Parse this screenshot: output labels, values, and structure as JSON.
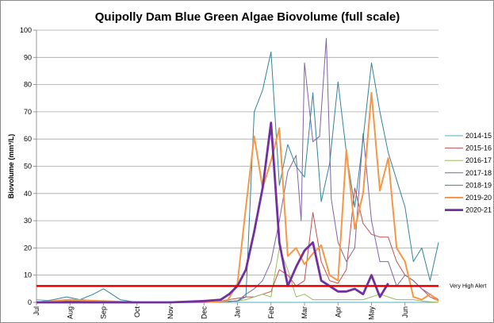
{
  "chart_data": {
    "type": "line",
    "title": "Quipolly Dam Blue Green Algae Biovolume (full scale)",
    "xlabel": "",
    "ylabel": "Biovolume (mm³/L)",
    "ylim": [
      0,
      100
    ],
    "yticks": [
      0,
      10,
      20,
      30,
      40,
      50,
      60,
      70,
      80,
      90,
      100
    ],
    "xlim": [
      0,
      12
    ],
    "x_months": [
      "Jul",
      "Aug",
      "Sep",
      "Oct",
      "Nov",
      "Dec",
      "Jan",
      "Feb",
      "Mar",
      "Apr",
      "May",
      "Jun"
    ],
    "grid": "horizontal",
    "legend_position": "right",
    "alert_line": {
      "value": 6,
      "label": "Very High Alert",
      "color": "#e00000"
    },
    "series": [
      {
        "name": "2014-15",
        "color": "#4bacc6",
        "width": 1,
        "x": [
          0.0,
          0.5,
          1.0,
          1.4,
          1.7,
          2.0,
          3.0,
          4.0,
          5.0,
          6.0,
          6.25,
          6.5,
          6.75,
          7.0,
          7.25,
          7.5,
          7.75,
          8.0,
          8.25,
          8.5,
          8.75,
          9.0,
          9.25,
          9.5,
          9.75,
          10.0,
          10.25,
          10.5,
          10.75,
          11.0,
          11.25,
          11.5,
          11.75,
          12.0
        ],
        "y": [
          1.0,
          0.5,
          1.0,
          1.0,
          0.5,
          0.2,
          0,
          0,
          0,
          0,
          0,
          0,
          0,
          0,
          0,
          0,
          0,
          0,
          0,
          0,
          0,
          0,
          0,
          0,
          0,
          0,
          0,
          0,
          0,
          0,
          0,
          0,
          0,
          0
        ]
      },
      {
        "name": "2015-16",
        "color": "#c0504d",
        "width": 1,
        "x": [
          0.0,
          1.0,
          2.0,
          3.0,
          4.0,
          5.0,
          5.5,
          6.0,
          6.25,
          6.5,
          6.75,
          7.0,
          7.25,
          7.5,
          7.75,
          8.0,
          8.25,
          8.5,
          8.75,
          9.0,
          9.25,
          9.5,
          9.75,
          10.0,
          10.25,
          10.5,
          10.75,
          11.0,
          11.25,
          11.5,
          11.75,
          12.0
        ],
        "y": [
          0,
          0.5,
          0.2,
          0,
          0,
          0,
          0.5,
          1.5,
          2.0,
          2.0,
          3.0,
          4.0,
          12.0,
          10.0,
          6.0,
          8.0,
          33.0,
          15.0,
          8.0,
          7.0,
          12.0,
          42.0,
          29.0,
          25.0,
          24.0,
          24.0,
          15.0,
          10.0,
          8.0,
          5.0,
          2.0,
          0.5
        ]
      },
      {
        "name": "2016-17",
        "color": "#9bbb59",
        "width": 1,
        "x": [
          0.0,
          1.0,
          2.0,
          3.0,
          4.0,
          5.0,
          6.0,
          6.25,
          6.5,
          6.75,
          7.0,
          7.25,
          7.5,
          7.75,
          8.0,
          8.25,
          8.5,
          8.75,
          9.0,
          9.25,
          9.5,
          9.75,
          10.0,
          10.25,
          10.5,
          10.75,
          11.0,
          11.25,
          11.5,
          11.75,
          12.0
        ],
        "y": [
          0,
          0,
          0,
          0,
          0,
          0,
          0.5,
          1.0,
          2.0,
          3.0,
          2.0,
          20.0,
          12.0,
          2.0,
          3.0,
          1.0,
          1.0,
          1.0,
          1.0,
          1.0,
          1.0,
          1.0,
          2.0,
          3.0,
          2.0,
          1.0,
          1.0,
          1.0,
          0.5,
          0.2,
          0
        ]
      },
      {
        "name": "2017-18",
        "color": "#8064a2",
        "width": 1,
        "x": [
          0.0,
          1.0,
          2.0,
          3.0,
          4.0,
          5.0,
          6.0,
          6.25,
          6.5,
          6.75,
          7.0,
          7.25,
          7.5,
          7.75,
          7.9,
          8.0,
          8.25,
          8.45,
          8.65,
          8.8,
          9.0,
          9.25,
          9.5,
          9.75,
          10.0,
          10.25,
          10.5,
          10.75,
          11.0,
          11.25,
          11.5,
          11.75,
          12.0
        ],
        "y": [
          0,
          0,
          0,
          0,
          0,
          0,
          0.5,
          3.0,
          5.0,
          8.0,
          15.0,
          30.0,
          48.0,
          54.0,
          30.0,
          88.0,
          59.0,
          61.0,
          97.0,
          38.0,
          22.0,
          15.0,
          20.0,
          62.0,
          30.0,
          15.0,
          15.0,
          6.0,
          10.0,
          8.0,
          5.0,
          3.0,
          1.0
        ]
      },
      {
        "name": "2018-19",
        "color": "#31849b",
        "width": 1,
        "x": [
          0.0,
          0.5,
          0.9,
          1.3,
          1.7,
          2.0,
          2.5,
          3.0,
          4.0,
          5.0,
          6.0,
          6.25,
          6.5,
          6.75,
          7.0,
          7.25,
          7.5,
          7.75,
          8.0,
          8.25,
          8.5,
          8.75,
          9.0,
          9.25,
          9.5,
          9.75,
          10.0,
          10.25,
          10.5,
          10.75,
          11.0,
          11.25,
          11.5,
          11.75,
          12.0
        ],
        "y": [
          0,
          1.0,
          2.0,
          1.0,
          3.0,
          5.0,
          1.0,
          0,
          0,
          0,
          0.5,
          2.0,
          70.0,
          78.0,
          92.0,
          43.0,
          58.0,
          50.0,
          46.0,
          77.0,
          37.0,
          51.0,
          81.0,
          55.0,
          35.0,
          60.0,
          88.0,
          70.0,
          55.0,
          45.0,
          35.0,
          15.0,
          20.0,
          8.0,
          22.0
        ]
      },
      {
        "name": "2019-20",
        "color": "#f79646",
        "width": 2,
        "x": [
          0.0,
          0.5,
          1.0,
          2.0,
          3.0,
          4.0,
          5.0,
          5.7,
          6.0,
          6.25,
          6.5,
          6.75,
          7.0,
          7.25,
          7.5,
          7.75,
          8.0,
          8.25,
          8.5,
          8.75,
          9.0,
          9.25,
          9.5,
          9.75,
          10.0,
          10.25,
          10.5,
          10.75,
          11.0,
          11.25,
          11.5,
          11.75,
          12.0
        ],
        "y": [
          0,
          0.5,
          1.0,
          0.5,
          0,
          0,
          0,
          0.5,
          7.0,
          35.0,
          61.0,
          42.0,
          52.0,
          64.0,
          17.0,
          20.0,
          14.0,
          18.0,
          21.0,
          10.0,
          8.0,
          56.0,
          27.0,
          40.0,
          77.0,
          41.0,
          53.0,
          20.0,
          15.0,
          2.0,
          1.0,
          3.0,
          0.5
        ]
      },
      {
        "name": "2020-21",
        "color": "#7030a0",
        "width": 2.8,
        "x": [
          0.0,
          0.5,
          1.0,
          2.0,
          3.0,
          4.0,
          5.0,
          5.5,
          5.75,
          6.0,
          6.25,
          6.5,
          6.75,
          7.0,
          7.25,
          7.5,
          7.75,
          8.0,
          8.25,
          8.5,
          8.75,
          9.0,
          9.25,
          9.5,
          9.75,
          10.0,
          10.25,
          10.5
        ],
        "y": [
          0,
          0,
          0,
          0,
          0,
          0,
          0.5,
          1.0,
          3.0,
          6.0,
          12.0,
          26.0,
          42.0,
          66.0,
          22.0,
          6.0,
          13.0,
          19.0,
          22.0,
          8.0,
          6.0,
          4.0,
          4.0,
          5.0,
          3.0,
          10.0,
          2.0,
          7.0
        ]
      }
    ]
  }
}
